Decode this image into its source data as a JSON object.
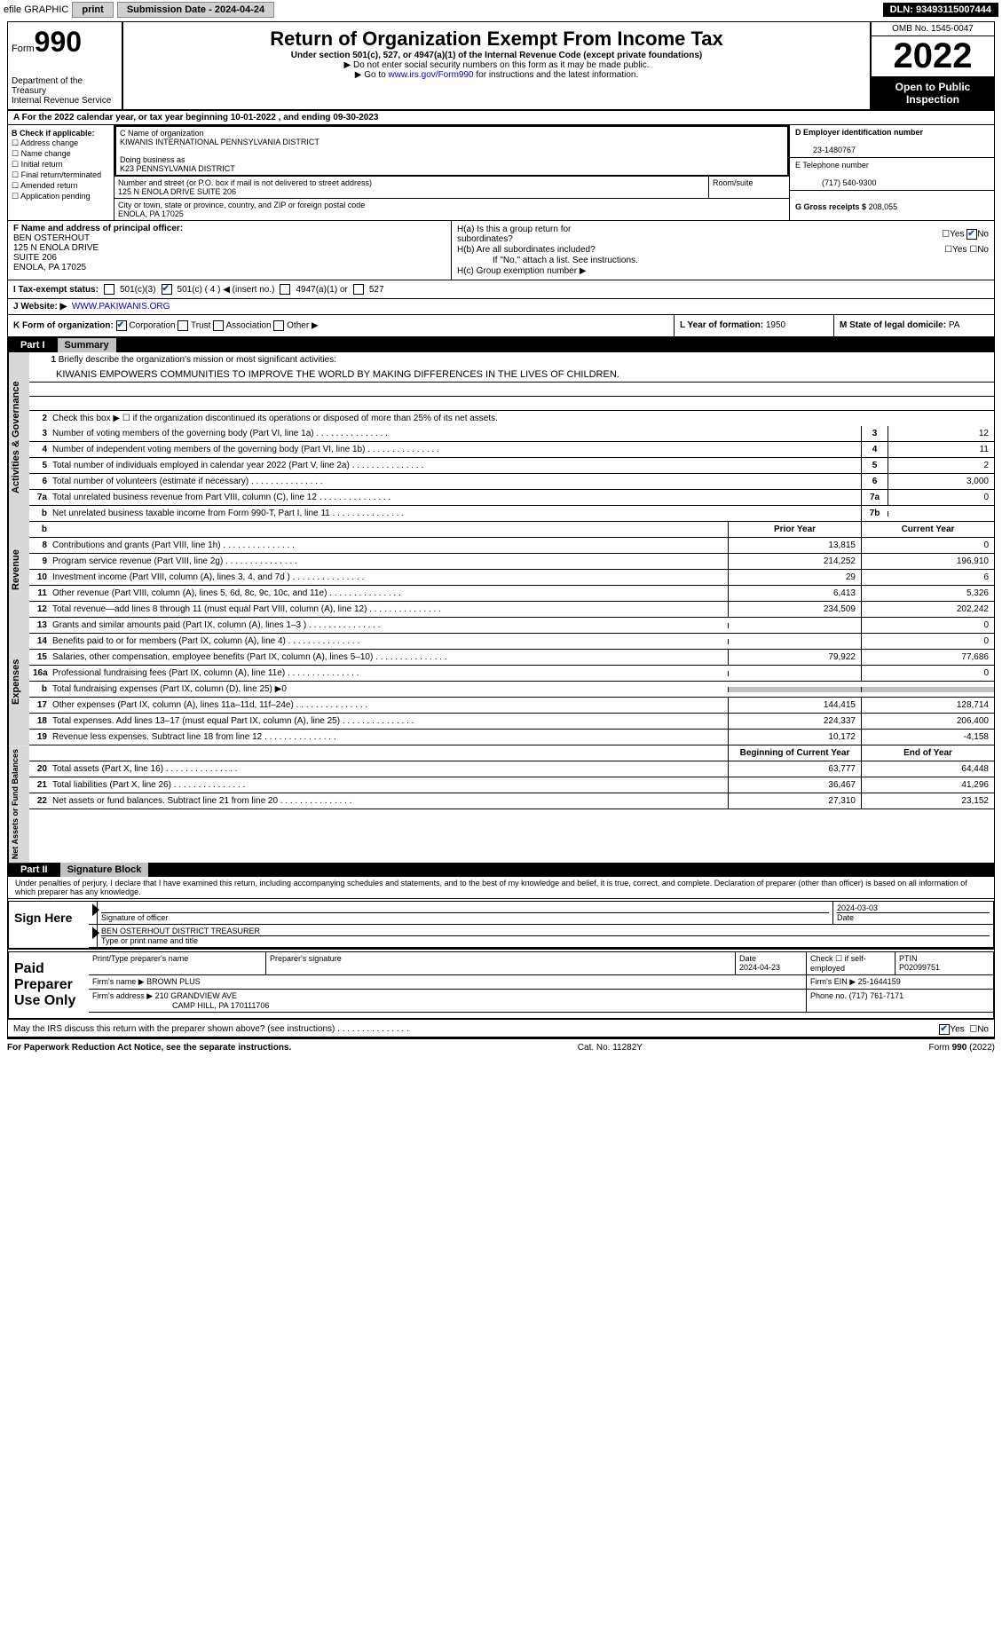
{
  "top": {
    "efile": "efile GRAPHIC",
    "print": "print",
    "subdate_lbl": "Submission Date - 2024-04-24",
    "dln": "DLN: 93493115007444"
  },
  "header": {
    "form_lbl": "Form",
    "form_num": "990",
    "dept": "Department of the Treasury\nInternal Revenue Service",
    "title": "Return of Organization Exempt From Income Tax",
    "sub1": "Under section 501(c), 527, or 4947(a)(1) of the Internal Revenue Code (except private foundations)",
    "sub2": "▶ Do not enter social security numbers on this form as it may be made public.",
    "sub3_pre": "▶ Go to ",
    "sub3_link": "www.irs.gov/Form990",
    "sub3_post": " for instructions and the latest information.",
    "omb": "OMB No. 1545-0047",
    "year": "2022",
    "open": "Open to Public Inspection"
  },
  "a": {
    "text": "A For the 2022 calendar year, or tax year beginning 10-01-2022   , and ending 09-30-2023"
  },
  "b": {
    "hdr": "B Check if applicable:",
    "opts": [
      "Address change",
      "Name change",
      "Initial return",
      "Final return/terminated",
      "Amended return",
      "Application pending"
    ]
  },
  "c": {
    "name_lbl": "C Name of organization",
    "name": "KIWANIS INTERNATIONAL PENNSYLVANIA DISTRICT",
    "dba_lbl": "Doing business as",
    "dba": "K23 PENNSYLVANIA DISTRICT",
    "street_lbl": "Number and street (or P.O. box if mail is not delivered to street address)",
    "street": "125 N ENOLA DRIVE SUITE 206",
    "room_lbl": "Room/suite",
    "city_lbl": "City or town, state or province, country, and ZIP or foreign postal code",
    "city": "ENOLA, PA  17025"
  },
  "d": {
    "ein_lbl": "D Employer identification number",
    "ein": "23-1480767",
    "tel_lbl": "E Telephone number",
    "tel": "(717) 540-9300",
    "gross_lbl": "G Gross receipts $",
    "gross": "208,055"
  },
  "f": {
    "lbl": "F  Name and address of principal officer:",
    "name": "BEN OSTERHOUT",
    "addr1": "125 N ENOLA DRIVE",
    "addr2": "SUITE 206",
    "addr3": "ENOLA, PA  17025"
  },
  "h": {
    "ha": "H(a)  Is this a group return for subordinates?",
    "hb": "H(b)  Are all subordinates included?",
    "hb_note": "If \"No,\" attach a list. See instructions.",
    "hc": "H(c)  Group exemption number ▶",
    "yes": "Yes",
    "no": "No"
  },
  "i": {
    "lbl": "I    Tax-exempt status:",
    "o1": "501(c)(3)",
    "o2": "501(c) ( 4 ) ◀ (insert no.)",
    "o3": "4947(a)(1) or",
    "o4": "527"
  },
  "j": {
    "lbl": "J   Website: ▶",
    "url": "WWW.PAKIWANIS.ORG"
  },
  "k": {
    "lbl": "K Form of organization:",
    "corp": "Corporation",
    "trust": "Trust",
    "assoc": "Association",
    "other": "Other ▶",
    "l_lbl": "L Year of formation:",
    "l_val": "1950",
    "m_lbl": "M State of legal domicile:",
    "m_val": "PA"
  },
  "part1": {
    "num": "Part I",
    "title": "Summary",
    "mission_lbl": "Briefly describe the organization's mission or most significant activities:",
    "mission": "KIWANIS EMPOWERS COMMUNITIES TO IMPROVE THE WORLD BY MAKING DIFFERENCES IN THE LIVES OF CHILDREN.",
    "lines": [
      {
        "n": "2",
        "t": "Check this box ▶ ☐  if the organization discontinued its operations or disposed of more than 25% of its net assets."
      },
      {
        "n": "3",
        "t": "Number of voting members of the governing body (Part VI, line 1a)",
        "box": "3",
        "v": "12"
      },
      {
        "n": "4",
        "t": "Number of independent voting members of the governing body (Part VI, line 1b)",
        "box": "4",
        "v": "11"
      },
      {
        "n": "5",
        "t": "Total number of individuals employed in calendar year 2022 (Part V, line 2a)",
        "box": "5",
        "v": "2"
      },
      {
        "n": "6",
        "t": "Total number of volunteers (estimate if necessary)",
        "box": "6",
        "v": "3,000"
      },
      {
        "n": "7a",
        "t": "Total unrelated business revenue from Part VIII, column (C), line 12",
        "box": "7a",
        "v": "0"
      },
      {
        "n": "b",
        "t": "Net unrelated business taxable income from Form 990-T, Part I, line 11",
        "box": "7b",
        "v": ""
      }
    ],
    "prior": "Prior Year",
    "current": "Current Year",
    "rev": [
      {
        "n": "8",
        "t": "Contributions and grants (Part VIII, line 1h)",
        "p": "13,815",
        "c": "0"
      },
      {
        "n": "9",
        "t": "Program service revenue (Part VIII, line 2g)",
        "p": "214,252",
        "c": "196,910"
      },
      {
        "n": "10",
        "t": "Investment income (Part VIII, column (A), lines 3, 4, and 7d )",
        "p": "29",
        "c": "6"
      },
      {
        "n": "11",
        "t": "Other revenue (Part VIII, column (A), lines 5, 6d, 8c, 9c, 10c, and 11e)",
        "p": "6,413",
        "c": "5,326"
      },
      {
        "n": "12",
        "t": "Total revenue—add lines 8 through 11 (must equal Part VIII, column (A), line 12)",
        "p": "234,509",
        "c": "202,242"
      }
    ],
    "exp": [
      {
        "n": "13",
        "t": "Grants and similar amounts paid (Part IX, column (A), lines 1–3 )",
        "p": "",
        "c": "0"
      },
      {
        "n": "14",
        "t": "Benefits paid to or for members (Part IX, column (A), line 4)",
        "p": "",
        "c": "0"
      },
      {
        "n": "15",
        "t": "Salaries, other compensation, employee benefits (Part IX, column (A), lines 5–10)",
        "p": "79,922",
        "c": "77,686"
      },
      {
        "n": "16a",
        "t": "Professional fundraising fees (Part IX, column (A), line 11e)",
        "p": "",
        "c": "0"
      },
      {
        "n": "b",
        "t": "Total fundraising expenses (Part IX, column (D), line 25) ▶0",
        "gray": true
      },
      {
        "n": "17",
        "t": "Other expenses (Part IX, column (A), lines 11a–11d, 11f–24e)",
        "p": "144,415",
        "c": "128,714"
      },
      {
        "n": "18",
        "t": "Total expenses. Add lines 13–17 (must equal Part IX, column (A), line 25)",
        "p": "224,337",
        "c": "206,400"
      },
      {
        "n": "19",
        "t": "Revenue less expenses. Subtract line 18 from line 12",
        "p": "10,172",
        "c": "-4,158"
      }
    ],
    "boy": "Beginning of Current Year",
    "eoy": "End of Year",
    "net": [
      {
        "n": "20",
        "t": "Total assets (Part X, line 16)",
        "p": "63,777",
        "c": "64,448"
      },
      {
        "n": "21",
        "t": "Total liabilities (Part X, line 26)",
        "p": "36,467",
        "c": "41,296"
      },
      {
        "n": "22",
        "t": "Net assets or fund balances. Subtract line 21 from line 20",
        "p": "27,310",
        "c": "23,152"
      }
    ],
    "vtabs": {
      "ag": "Activities & Governance",
      "rev": "Revenue",
      "exp": "Expenses",
      "net": "Net Assets or Fund Balances"
    }
  },
  "part2": {
    "num": "Part II",
    "title": "Signature Block",
    "penalty": "Under penalties of perjury, I declare that I have examined this return, including accompanying schedules and statements, and to the best of my knowledge and belief, it is true, correct, and complete. Declaration of preparer (other than officer) is based on all information of which preparer has any knowledge.",
    "sign_here": "Sign Here",
    "sig_officer_lbl": "Signature of officer",
    "sig_date": "2024-03-03",
    "date_lbl": "Date",
    "name_title": "BEN OSTERHOUT DISTRICT TREASURER",
    "name_title_lbl": "Type or print name and title",
    "paid": "Paid Preparer Use Only",
    "prep_name_lbl": "Print/Type preparer's name",
    "prep_sig_lbl": "Preparer's signature",
    "prep_date_lbl": "Date",
    "prep_date": "2024-04-23",
    "self_lbl": "Check ☐ if self-employed",
    "ptin_lbl": "PTIN",
    "ptin": "P02099751",
    "firm_name_lbl": "Firm's name   ▶",
    "firm_name": "BROWN PLUS",
    "firm_ein_lbl": "Firm's EIN ▶",
    "firm_ein": "25-1644159",
    "firm_addr_lbl": "Firm's address ▶",
    "firm_addr": "210 GRANDVIEW AVE",
    "firm_city": "CAMP HILL, PA  170111706",
    "phone_lbl": "Phone no.",
    "phone": "(717) 761-7171",
    "discuss": "May the IRS discuss this return with the preparer shown above? (see instructions)",
    "yes": "Yes",
    "no": "No"
  },
  "footer": {
    "left": "For Paperwork Reduction Act Notice, see the separate instructions.",
    "mid": "Cat. No. 11282Y",
    "right": "Form 990 (2022)"
  }
}
